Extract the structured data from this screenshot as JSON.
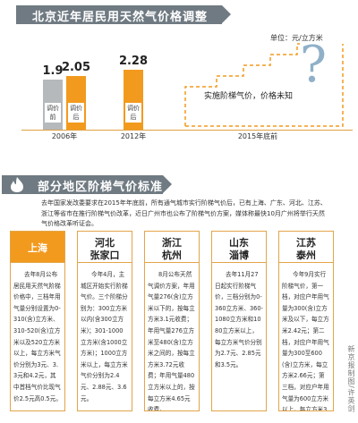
{
  "header1": {
    "title": "北京近年居民用天然气价格调整"
  },
  "unit": "单位：元/立方米",
  "chart_data": {
    "type": "bar",
    "groups": [
      {
        "year": "2006年",
        "bars": [
          {
            "label": "调价前",
            "value": 1.9,
            "value_text": "1.9",
            "color": "#b5b9bc"
          },
          {
            "label": "调价后",
            "value": 2.05,
            "value_text": "2.05",
            "color": "#f29a1e"
          }
        ]
      },
      {
        "year": "2012年",
        "bars": [
          {
            "label": "调价后",
            "value": 2.28,
            "value_text": "2.28",
            "color": "#f29a1e"
          }
        ]
      },
      {
        "year": "2015年底前",
        "bars": []
      }
    ],
    "future_note": "实施阶梯气价，价格未知",
    "question_mark": "?",
    "ylim": [
      0,
      3.4
    ]
  },
  "header2": {
    "title": "部分地区阶梯气价标准"
  },
  "intro": "去年国家发改委要求在2015年年底前，所有通气城市实行阶梯气价后，已有上海、广东、河北、江苏、浙江等省市在推行阶梯气价改革，近日广州市也公布了阶梯气价方案，媒体称最快10月广州将举行天然气价格改革听证会。",
  "cities": [
    {
      "name1": "上海",
      "name2": "",
      "text": "去年8月公布居民用天然气阶梯价格中，三档年用气量分别设置为0-310(含)立方米、310-520(含)立方米以及520立方米以上，每立方米气价分别为3元、3.3元和4.2元，其中首档气价比现气价2.5元高0.5元。"
    },
    {
      "name1": "河北",
      "name2": "张家口",
      "text": "今年4月，主城区开始实行阶梯气价。三个阶梯分别为：300立方米以内(含300立方米)；301-1000立方米(含1000立方米)；1000立方米以上，每立方米气价分别为2.4元、2.88元、3.6元。"
    },
    {
      "name1": "浙江",
      "name2": "杭州",
      "text": "8月公布天然气调价方案，年用气量276(含)立方米以下的，按每立方米3.1元收费；年用气量276立方米至480(含)立方米之间的，按每立方米3.72元收费；年用气量480立方米以上的，按每立方米4.65元收费。"
    },
    {
      "name1": "山东",
      "name2": "淄博",
      "text": "去年11月27日起实行阶梯气价，三档分别为0-360立方米、360-1080立方米和1080立方米以上，每立方米气价分别为2.7元、2.85元和3.5元。"
    },
    {
      "name1": "江苏",
      "name2": "泰州",
      "text": "今年9月实行阶梯气价，第一档，对应户年用气量为300(含)立方米及以下，每立方米2.42元；第二档，对应户年用气量为300至600(含)立方米，每立方米2.66元；第三档，对应户年用气量为600立方米以上，每立方米3.39元。"
    }
  ],
  "credit": "新京报制图/许英剑"
}
